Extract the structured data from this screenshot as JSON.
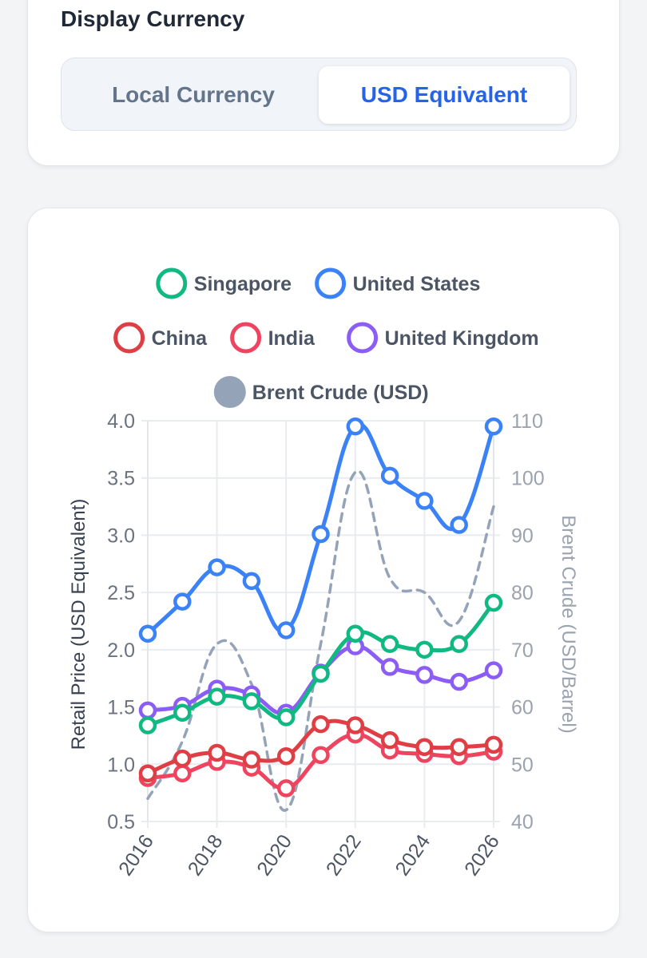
{
  "currency": {
    "title": "Display Currency",
    "options": [
      "Local Currency",
      "USD Equivalent"
    ],
    "selected": "USD Equivalent"
  },
  "colors": {
    "Singapore": "#10b981",
    "United States": "#3b82f6",
    "China": "#e03e45",
    "India": "#ef4460",
    "United Kingdom": "#8b5cf6",
    "Brent Crude (USD)": "#94a3b8"
  },
  "chart_data": {
    "type": "line",
    "x": [
      2016,
      2017,
      2018,
      2019,
      2020,
      2021,
      2022,
      2023,
      2024,
      2025,
      2026
    ],
    "x_ticks": [
      "2016",
      "2018",
      "2020",
      "2022",
      "2024",
      "2026"
    ],
    "series": [
      {
        "name": "Singapore",
        "axis": "left",
        "values": [
          1.34,
          1.45,
          1.59,
          1.55,
          1.41,
          1.79,
          2.14,
          2.05,
          2.0,
          2.05,
          2.41
        ]
      },
      {
        "name": "United States",
        "axis": "left",
        "values": [
          2.14,
          2.42,
          2.72,
          2.6,
          2.17,
          3.01,
          3.95,
          3.52,
          3.3,
          3.09,
          3.95
        ]
      },
      {
        "name": "China",
        "axis": "left",
        "values": [
          0.92,
          1.05,
          1.1,
          1.04,
          1.07,
          1.35,
          1.34,
          1.21,
          1.15,
          1.15,
          1.17
        ]
      },
      {
        "name": "India",
        "axis": "left",
        "values": [
          0.88,
          0.92,
          1.02,
          0.97,
          0.79,
          1.08,
          1.26,
          1.12,
          1.09,
          1.07,
          1.11
        ]
      },
      {
        "name": "United Kingdom",
        "axis": "left",
        "values": [
          1.47,
          1.51,
          1.66,
          1.61,
          1.45,
          1.8,
          2.03,
          1.85,
          1.78,
          1.72,
          1.82
        ]
      },
      {
        "name": "Brent Crude (USD)",
        "axis": "right",
        "style": "dashed",
        "values": [
          44,
          54,
          71,
          64,
          42,
          71,
          101,
          82.5,
          80,
          75,
          95
        ]
      }
    ],
    "legend_rows": [
      [
        "Singapore",
        "United States"
      ],
      [
        "China",
        "India",
        "United Kingdom"
      ],
      [
        "Brent Crude (USD)"
      ]
    ],
    "ylabel": "Retail Price (USD Equivalent)",
    "y2label": "Brent Crude (USD/Barrel)",
    "ylim": [
      0.5,
      4.0
    ],
    "y_ticks": [
      "0.5",
      "1.0",
      "1.5",
      "2.0",
      "2.5",
      "3.0",
      "3.5",
      "4.0"
    ],
    "y2lim": [
      40,
      110
    ],
    "y2_ticks": [
      "40",
      "50",
      "60",
      "70",
      "80",
      "90",
      "100",
      "110"
    ]
  }
}
